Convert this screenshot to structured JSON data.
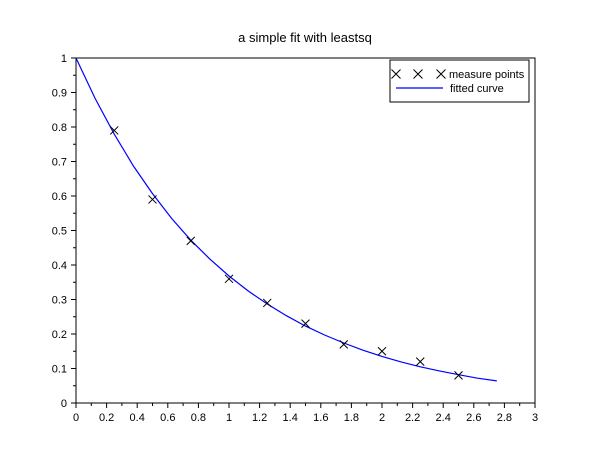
{
  "figure": {
    "background_color": "#ffffff"
  },
  "chart_data": {
    "type": "line",
    "title": "a simple fit with leastsq",
    "xlabel": "",
    "ylabel": "",
    "xlim": [
      0,
      3
    ],
    "ylim": [
      0,
      1
    ],
    "grid": false,
    "legend_position": "top-right",
    "axis_color": "#000000",
    "text_color": "#000000",
    "x_axis": {
      "major_ticks": [
        0,
        0.2,
        0.4,
        0.6,
        0.8,
        1,
        1.2,
        1.4,
        1.6,
        1.8,
        2,
        2.2,
        2.4,
        2.6,
        2.8,
        3
      ],
      "major_labels": [
        "0",
        "0.2",
        "0.4",
        "0.6",
        "0.8",
        "1",
        "1.2",
        "1.4",
        "1.6",
        "1.8",
        "2",
        "2.2",
        "2.4",
        "2.6",
        "2.8",
        "3"
      ],
      "minor_ticks": [
        0.1,
        0.3,
        0.5,
        0.7,
        0.9,
        1.1,
        1.3,
        1.5,
        1.7,
        1.9,
        2.1,
        2.3,
        2.5,
        2.7,
        2.9
      ]
    },
    "y_axis": {
      "major_ticks": [
        0,
        0.1,
        0.2,
        0.3,
        0.4,
        0.5,
        0.6,
        0.7,
        0.8,
        0.9,
        1
      ],
      "major_labels": [
        "0",
        "0.1",
        "0.2",
        "0.3",
        "0.4",
        "0.5",
        "0.6",
        "0.7",
        "0.8",
        "0.9",
        "1"
      ],
      "minor_ticks": [
        0.05,
        0.15,
        0.25,
        0.35,
        0.45,
        0.55,
        0.65,
        0.75,
        0.85,
        0.95
      ]
    },
    "series": [
      {
        "name": "measure points",
        "type": "scatter",
        "marker": "x",
        "color": "#000000",
        "x": [
          0.25,
          0.5,
          0.75,
          1,
          1.25,
          1.5,
          1.75,
          2,
          2.25,
          2.5
        ],
        "y": [
          0.79,
          0.59,
          0.47,
          0.36,
          0.29,
          0.23,
          0.17,
          0.15,
          0.12,
          0.08
        ]
      },
      {
        "name": "fitted curve",
        "type": "line",
        "color": "#0000ff",
        "x": [
          0,
          0.125,
          0.25,
          0.375,
          0.5,
          0.625,
          0.75,
          0.875,
          1,
          1.125,
          1.25,
          1.375,
          1.5,
          1.625,
          1.75,
          1.875,
          2,
          2.125,
          2.25,
          2.375,
          2.5,
          2.625,
          2.75
        ],
        "y": [
          1.0,
          0.883,
          0.779,
          0.687,
          0.607,
          0.535,
          0.472,
          0.417,
          0.368,
          0.325,
          0.287,
          0.253,
          0.223,
          0.197,
          0.174,
          0.153,
          0.135,
          0.119,
          0.105,
          0.093,
          0.082,
          0.072,
          0.064
        ]
      }
    ]
  }
}
